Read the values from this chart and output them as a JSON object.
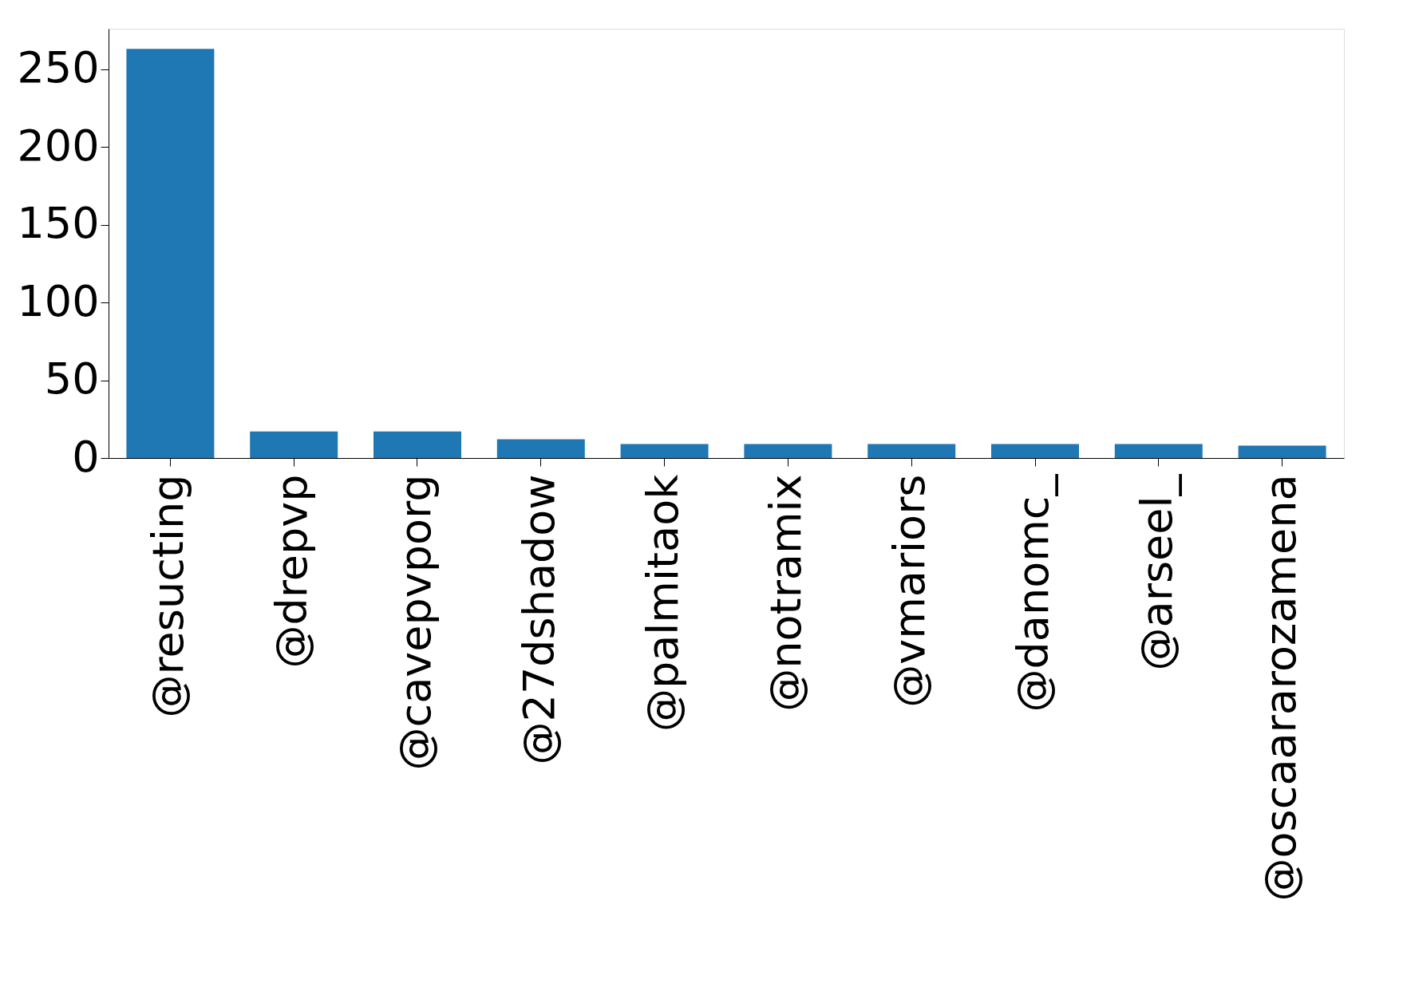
{
  "chart_data": {
    "type": "bar",
    "categories": [
      "@resucting",
      "@drepvp",
      "@cavepvporg",
      "@27dshadow",
      "@palmitaok",
      "@notramix",
      "@vmariors",
      "@danomc_",
      "@arseel_",
      "@oscaararozamena"
    ],
    "values": [
      263,
      17,
      17,
      12,
      9,
      9,
      9,
      9,
      9,
      8
    ],
    "color": "#1f77b4",
    "ylim": [
      0,
      276
    ],
    "yticks": [
      0,
      50,
      100,
      150,
      200,
      250
    ],
    "grid": false
  }
}
